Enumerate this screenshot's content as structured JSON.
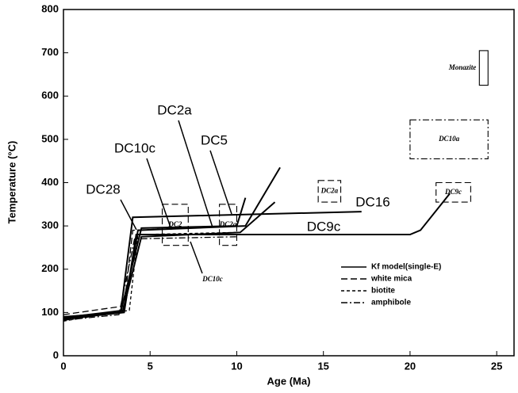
{
  "chart_data": {
    "type": "line",
    "xlabel": "Age  (Ma)",
    "ylabel": "Temperature  (°C)",
    "xlim": [
      0,
      26
    ],
    "ylim": [
      0,
      800
    ],
    "xticks": [
      0,
      5,
      10,
      15,
      20,
      25
    ],
    "yticks": [
      0,
      100,
      200,
      300,
      400,
      500,
      600,
      700,
      800
    ],
    "legend": "lower right",
    "series": [
      {
        "name": "Kf model(single-E)",
        "color": "#000000",
        "dash": "solid",
        "curves": [
          {
            "x": [
              0,
              3.3,
              4,
              17.2
            ],
            "y": [
              90,
              100,
              320,
              333
            ]
          },
          {
            "x": [
              0,
              3.5,
              4.2,
              20,
              20.6,
              22.3
            ],
            "y": [
              85,
              100,
              280,
              280,
              290,
              375
            ]
          },
          {
            "x": [
              0,
              3.5,
              4.3,
              10.5,
              12.5
            ],
            "y": [
              88,
              105,
              290,
              300,
              435
            ]
          },
          {
            "x": [
              0,
              3.4,
              4.5,
              10.2,
              12.2
            ],
            "y": [
              86,
              100,
              275,
              285,
              355
            ]
          },
          {
            "x": [
              0,
              3.3,
              4.5,
              10,
              10.5
            ],
            "y": [
              84,
              100,
              295,
              300,
              365
            ]
          }
        ]
      },
      {
        "name": "white mica",
        "color": "#000000",
        "dash": "long",
        "curves": [
          {
            "x": [
              0,
              3.5,
              4,
              10
            ],
            "y": [
              95,
              115,
              290,
              300
            ]
          }
        ]
      },
      {
        "name": "biotite",
        "color": "#000000",
        "dash": "short",
        "curves": [
          {
            "x": [
              0,
              3.8,
              4.3,
              10
            ],
            "y": [
              80,
              105,
              280,
              285
            ]
          }
        ]
      },
      {
        "name": "amphibole",
        "color": "#000000",
        "dash": "dashdot",
        "curves": [
          {
            "x": [
              0,
              3.2,
              4.1,
              10
            ],
            "y": [
              82,
              95,
              270,
              275
            ]
          }
        ]
      }
    ],
    "boxes": [
      {
        "label": "Monazite",
        "dash": "solid",
        "x": [
          24,
          24.5
        ],
        "y": [
          625,
          705
        ]
      },
      {
        "label": "DC10a",
        "dash": "dashdot",
        "x": [
          20,
          24.5
        ],
        "y": [
          455,
          545
        ]
      },
      {
        "label": "DC2a",
        "dash": "long",
        "x": [
          14.7,
          16
        ],
        "y": [
          355,
          405
        ]
      },
      {
        "label": "DC9c",
        "dash": "long",
        "x": [
          21.5,
          23.5
        ],
        "y": [
          355,
          400
        ]
      },
      {
        "label": "DC2",
        "dash": "long",
        "x": [
          5.7,
          7.2
        ],
        "y": [
          255,
          350
        ]
      },
      {
        "label": "DC2a",
        "dash": "long",
        "x": [
          9,
          10
        ],
        "y": [
          255,
          350
        ]
      }
    ],
    "annotations": [
      "DC2a",
      "DC5",
      "DC10c",
      "DC28",
      "DC16",
      "DC9c",
      "DC10c"
    ]
  }
}
